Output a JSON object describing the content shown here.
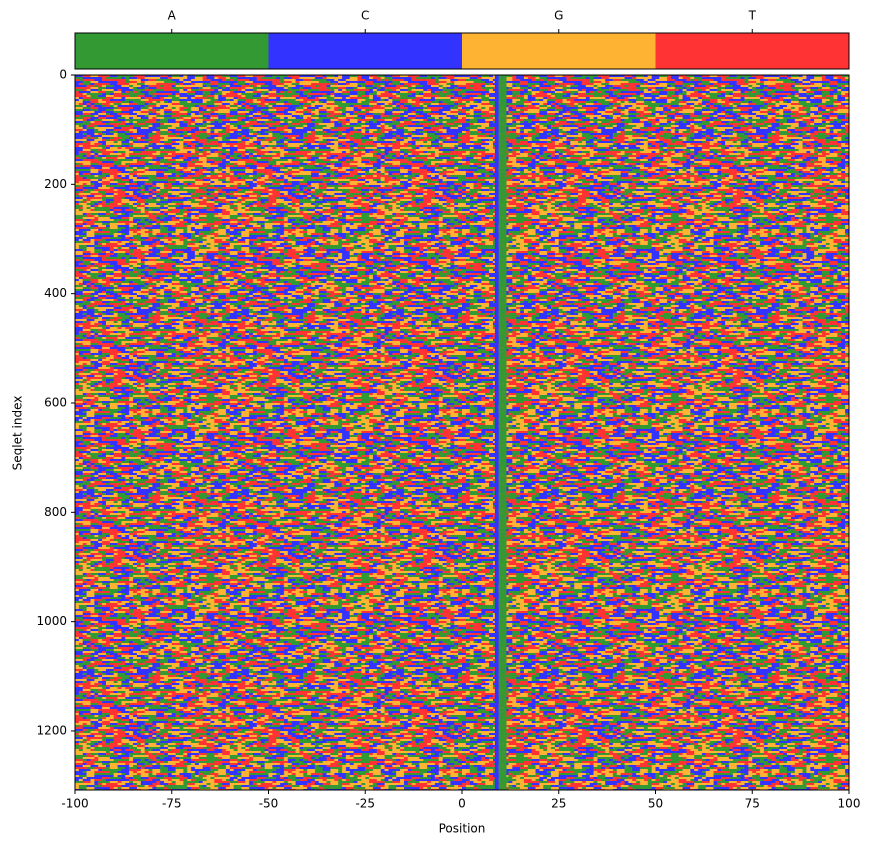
{
  "chart_data": {
    "type": "heatmap",
    "xlabel": "Position",
    "ylabel": "Seqlet index",
    "xlim": [
      -100,
      100
    ],
    "xticks": [
      -100,
      -75,
      -50,
      -25,
      0,
      25,
      50,
      75,
      100
    ],
    "ylim": [
      0,
      1308
    ],
    "y_inverted": true,
    "yticks": [
      0,
      200,
      400,
      600,
      800,
      1000,
      1200
    ],
    "colorbar": {
      "categories": [
        "A",
        "C",
        "G",
        "T"
      ],
      "colors": [
        "#339933",
        "#3333ff",
        "#ffb333",
        "#ff3333"
      ],
      "position": "top"
    },
    "conserved": {
      "x": [
        9,
        10,
        11
      ],
      "category": [
        1,
        0,
        0
      ]
    }
  }
}
